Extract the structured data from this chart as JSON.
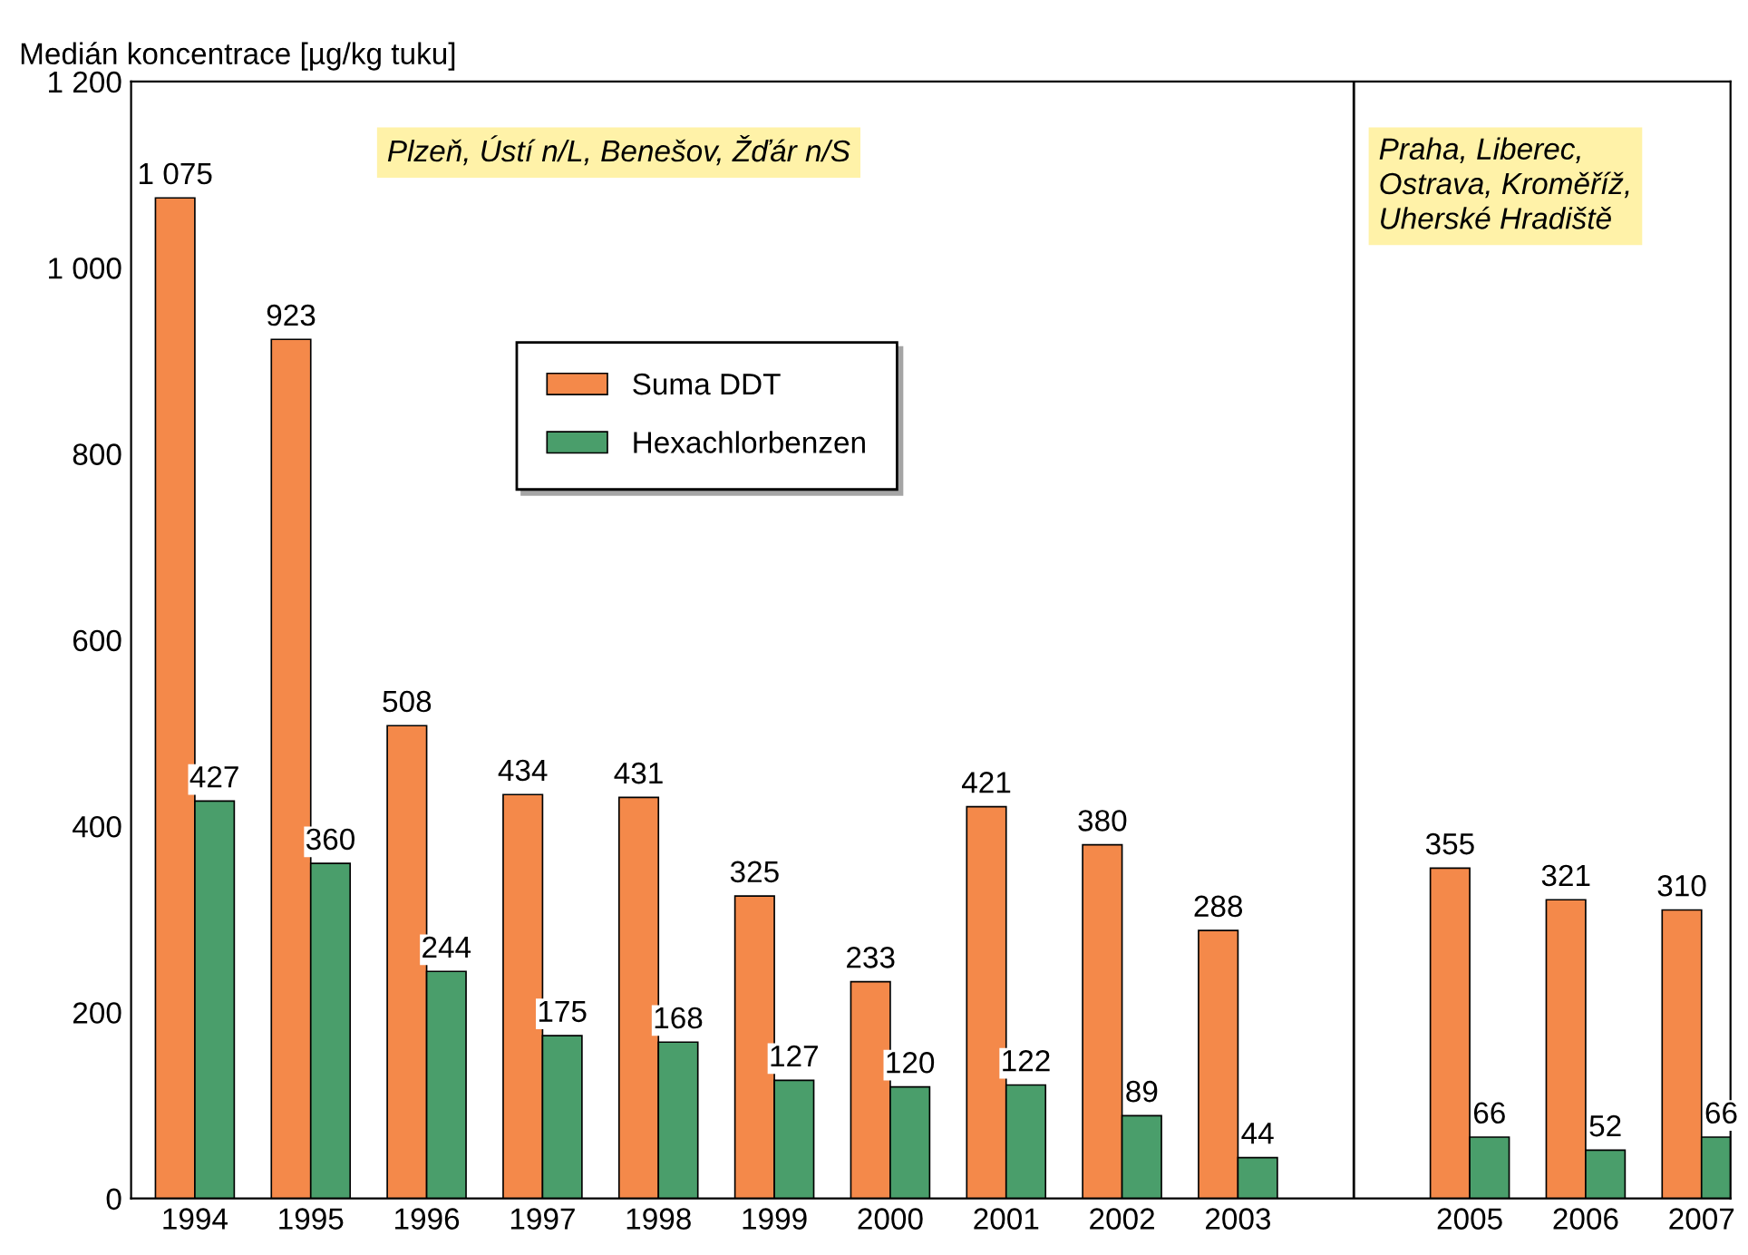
{
  "chart_data": {
    "type": "bar",
    "ylabel": "Medián koncentrace [µg/kg tuku]",
    "x": [
      1994,
      1995,
      1996,
      1997,
      1998,
      1999,
      2000,
      2001,
      2002,
      2003,
      2005,
      2006,
      2007
    ],
    "xlim": [
      1993.45,
      2007.25
    ],
    "xticks": [
      1994,
      1995,
      1996,
      1997,
      1998,
      1999,
      2000,
      2001,
      2002,
      2003,
      2005,
      2006,
      2007
    ],
    "ylim": [
      0,
      1200
    ],
    "yticks": [
      0,
      200,
      400,
      600,
      800,
      {
        "value": 1000,
        "label": "1 000"
      },
      {
        "value": 1200,
        "label": "1 200"
      }
    ],
    "series": [
      {
        "name": "Suma DDT",
        "color": "#f4894a",
        "values": [
          1075,
          923,
          508,
          434,
          431,
          325,
          233,
          421,
          380,
          288,
          355,
          321,
          310
        ],
        "value_labels": [
          "1 075",
          "923",
          "508",
          "434",
          "431",
          "325",
          "233",
          "421",
          "380",
          "288",
          "355",
          "321",
          "310"
        ]
      },
      {
        "name": "Hexachlorbenzen",
        "color": "#4a9e6b",
        "values": [
          427,
          360,
          244,
          175,
          168,
          127,
          120,
          122,
          89,
          44,
          66,
          52,
          66
        ],
        "value_labels": [
          "427",
          "360",
          "244",
          "175",
          "168",
          "127",
          "120",
          "122",
          "89",
          "44",
          "66",
          "52",
          "66"
        ]
      }
    ],
    "ref_lines": [
      {
        "axis": "x",
        "value": 2004,
        "color": "#000000"
      }
    ],
    "annotations": [
      "Plzeň, Ústí n/L, Benešov, Žďár n/S",
      "Praha, Liberec,\nOstrava, Kroměříž,\nUherské Hradiště"
    ],
    "legend": "top",
    "grid": false
  }
}
